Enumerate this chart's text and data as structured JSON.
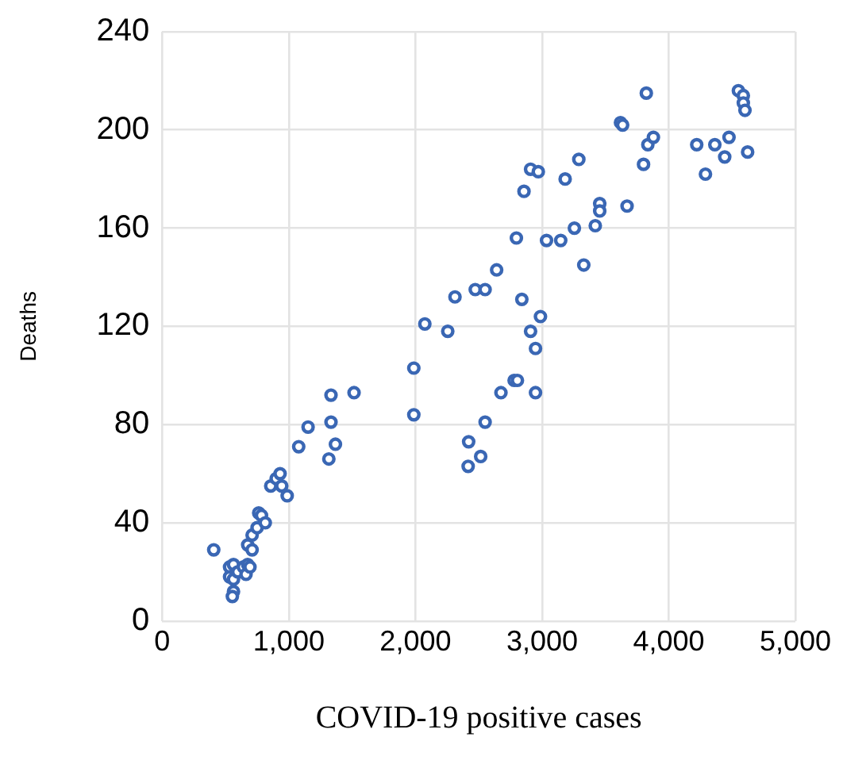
{
  "chart_data": {
    "type": "scatter",
    "xlabel": "COVID-19 positive cases",
    "ylabel": "Deaths",
    "xlim": [
      0,
      5000
    ],
    "xticks": [
      {
        "value": 0,
        "label": "0"
      },
      {
        "value": 1000,
        "label": "1,000"
      },
      {
        "value": 2000,
        "label": "2,000"
      },
      {
        "value": 3000,
        "label": "3,000"
      },
      {
        "value": 4000,
        "label": "4,000"
      },
      {
        "value": 5000,
        "label": "5,000"
      }
    ],
    "ylim": [
      0,
      240
    ],
    "yticks": [
      0,
      40,
      80,
      120,
      160,
      200,
      240
    ],
    "grid": true,
    "legend": false,
    "marker": "circle",
    "series": [
      {
        "color": "#3a67b4",
        "x": [
          407,
          532,
          563,
          532,
          563,
          563,
          554,
          597,
          641,
          662,
          675,
          693,
          675,
          710,
          710,
          749,
          762,
          784,
          814,
          857,
          900,
          931,
          944,
          987,
          1078,
          1152,
          1316,
          1333,
          1333,
          1368,
          1515,
          1987,
          1987,
          2074,
          2255,
          2312,
          2416,
          2420,
          2472,
          2515,
          2550,
          2550,
          2641,
          2675,
          2779,
          2805,
          2797,
          2840,
          2857,
          2909,
          2909,
          2948,
          2948,
          2970,
          2987,
          3035,
          3147,
          3182,
          3255,
          3290,
          3329,
          3420,
          3455,
          3455,
          3619,
          3636,
          3671,
          3801,
          3823,
          3835,
          3879,
          4221,
          4290,
          4364,
          4442,
          4476,
          4550,
          4589,
          4589,
          4602,
          4623
        ],
        "values": [
          29,
          22,
          23,
          18,
          17,
          12,
          10,
          20,
          22,
          19,
          23,
          22,
          31,
          29,
          35,
          38,
          44,
          43,
          40,
          55,
          58,
          60,
          55,
          51,
          71,
          79,
          66,
          81,
          92,
          72,
          93,
          103,
          84,
          121,
          118,
          132,
          63,
          73,
          135,
          67,
          135,
          81,
          143,
          93,
          98,
          98,
          156,
          131,
          175,
          118,
          184,
          111,
          93,
          183,
          124,
          155,
          155,
          180,
          160,
          188,
          145,
          161,
          170,
          167,
          203,
          202,
          169,
          186,
          215,
          194,
          197,
          194,
          182,
          194,
          189,
          197,
          216,
          214,
          211,
          208,
          191
        ]
      }
    ]
  }
}
